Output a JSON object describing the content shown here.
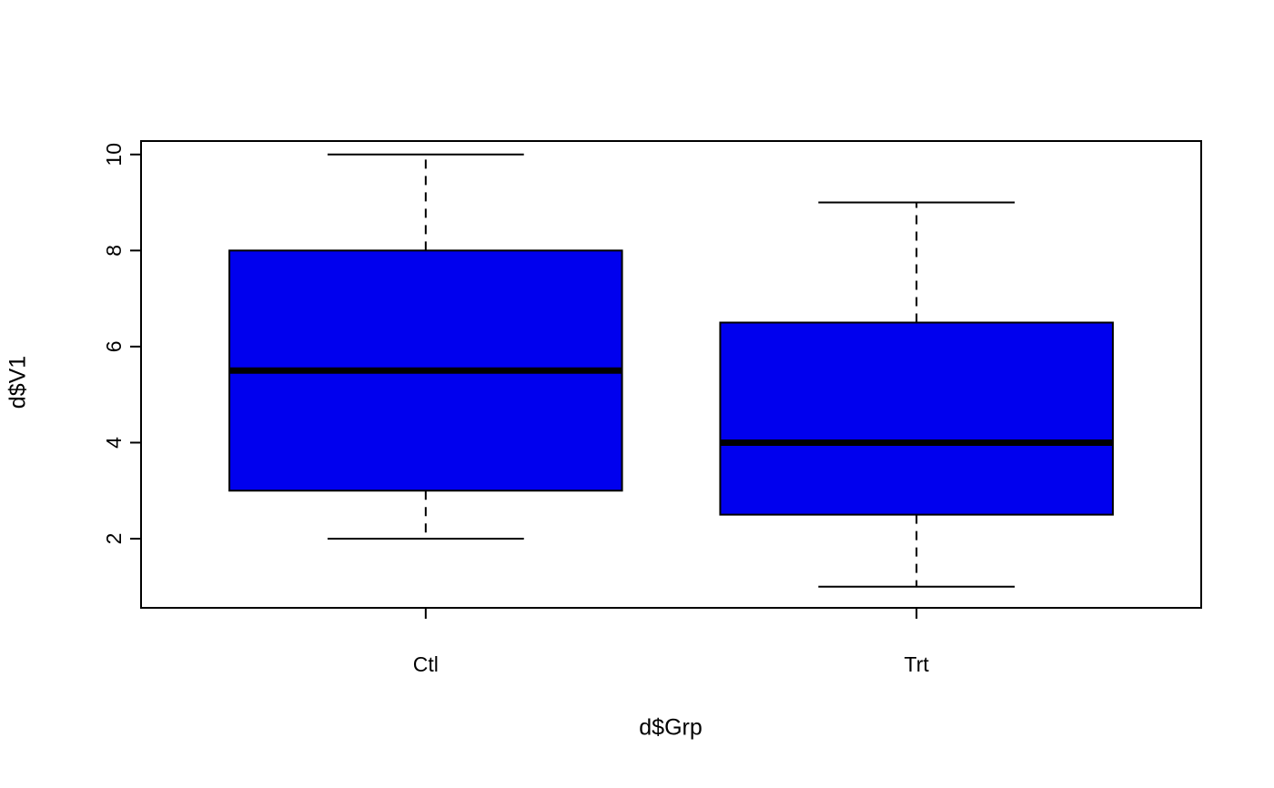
{
  "chart_data": {
    "type": "boxplot",
    "title": "",
    "xlabel": "d$Grp",
    "ylabel": "d$V1",
    "categories": [
      "Ctl",
      "Trt"
    ],
    "series": [
      {
        "name": "Ctl",
        "min": 2,
        "q1": 3,
        "median": 5.5,
        "q3": 8,
        "max": 10
      },
      {
        "name": "Trt",
        "min": 1,
        "q1": 2.5,
        "median": 4,
        "q3": 6.5,
        "max": 9
      }
    ],
    "yticks": [
      2,
      4,
      6,
      8,
      10
    ],
    "ylim": [
      0.56,
      10.28
    ],
    "xlim": [
      0.42,
      2.58
    ],
    "box_half_width_units": 0.4,
    "cap_half_width_units": 0.2,
    "box_fill": "#0000EE",
    "stroke_color": "#000000",
    "whisker_style": "dashed",
    "grid": "off",
    "legend": "none",
    "background": "#FFFFFF"
  }
}
